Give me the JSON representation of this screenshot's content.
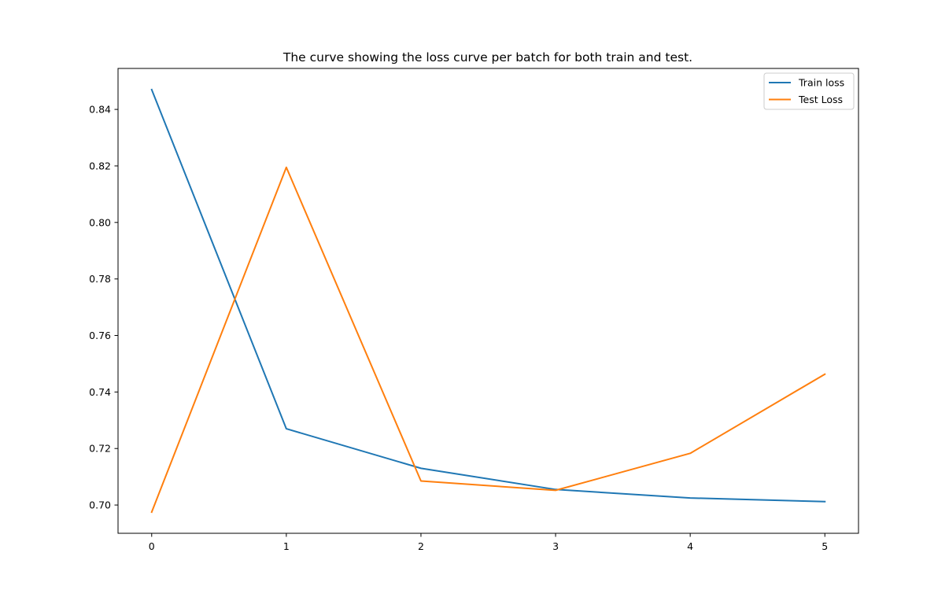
{
  "chart_data": {
    "type": "line",
    "title": "The curve showing the loss curve per batch for both train and test.",
    "xlabel": "",
    "ylabel": "",
    "x": [
      0,
      1,
      2,
      3,
      4,
      5
    ],
    "series": [
      {
        "name": "Train loss",
        "color": "#1f77b4",
        "values": [
          0.847,
          0.727,
          0.713,
          0.7055,
          0.7025,
          0.7012
        ]
      },
      {
        "name": "Test Loss",
        "color": "#ff7f0e",
        "values": [
          0.6975,
          0.8195,
          0.7085,
          0.7052,
          0.7183,
          0.7463
        ]
      }
    ],
    "xlim": [
      -0.25,
      5.25
    ],
    "ylim": [
      0.69,
      0.8545
    ],
    "xticks": [
      "0",
      "1",
      "2",
      "3",
      "4",
      "5"
    ],
    "yticks": [
      "0.70",
      "0.72",
      "0.74",
      "0.76",
      "0.78",
      "0.80",
      "0.82",
      "0.84"
    ],
    "grid": false,
    "legend": "top-right"
  }
}
